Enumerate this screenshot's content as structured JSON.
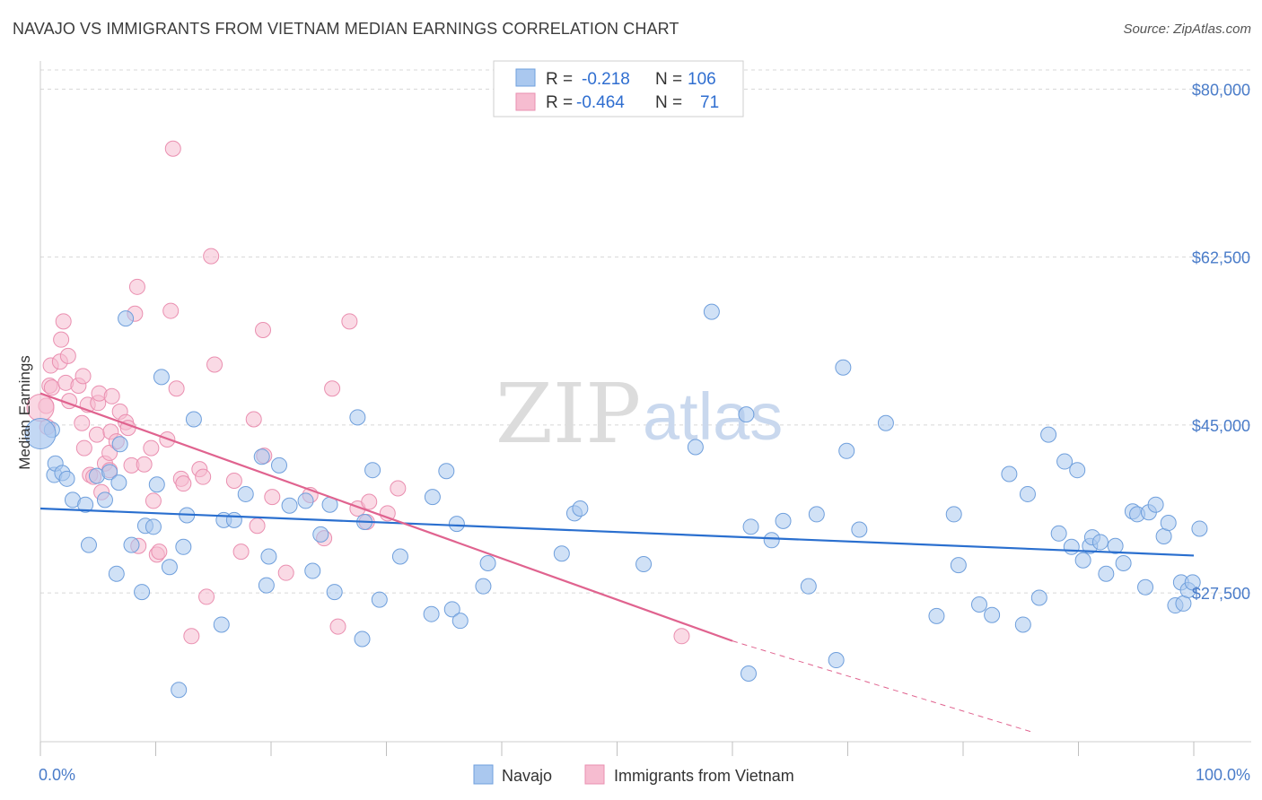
{
  "header": {
    "title": "NAVAJO VS IMMIGRANTS FROM VIETNAM MEDIAN EARNINGS CORRELATION CHART",
    "source": "Source: ZipAtlas.com"
  },
  "watermark": {
    "zip": "ZIP",
    "atlas": "atlas"
  },
  "legend": {
    "rows": [
      {
        "r_label": "R =",
        "r_value": "-0.218",
        "n_label": "N =",
        "n_value": "106"
      },
      {
        "r_label": "R =",
        "r_value": "-0.464",
        "n_label": "N =",
        "n_value": "71"
      }
    ]
  },
  "bottom_legend": {
    "series1": "Navajo",
    "series2": "Immigrants from Vietnam"
  },
  "colors": {
    "navajo_fill": "#aac8ef",
    "navajo_stroke": "#6f9fdc",
    "navajo_line": "#2a6fcf",
    "vietnam_fill": "#f6bcd0",
    "vietnam_stroke": "#ea8fb0",
    "vietnam_line": "#e0638f",
    "tick_label": "#4a7cc9",
    "grid": "#d8d8d8"
  },
  "chart_data": {
    "type": "scatter",
    "xlabel": "",
    "ylabel": "Median Earnings",
    "x_tick_labels": [
      "0.0%",
      "100.0%"
    ],
    "y_ticks": [
      27500,
      45000,
      62500,
      80000
    ],
    "y_tick_labels": [
      "$27,500",
      "$45,000",
      "$62,500",
      "$80,000"
    ],
    "xlim": [
      0,
      100
    ],
    "ylim": [
      12000,
      82000
    ],
    "grid": true,
    "legend_position": "top-center",
    "series": [
      {
        "name": "Navajo",
        "r": -0.218,
        "n": 106,
        "trend": {
          "x": [
            0,
            100
          ],
          "y": [
            36300,
            31400
          ]
        },
        "points": [
          [
            1.0,
            44500
          ],
          [
            1.2,
            39800
          ],
          [
            1.3,
            41000
          ],
          [
            1.9,
            40000
          ],
          [
            2.3,
            39400
          ],
          [
            2.8,
            37200
          ],
          [
            3.9,
            36700
          ],
          [
            4.2,
            32500
          ],
          [
            4.9,
            39700
          ],
          [
            5.6,
            37200
          ],
          [
            6.0,
            40100
          ],
          [
            6.6,
            29500
          ],
          [
            6.8,
            39000
          ],
          [
            6.9,
            43000
          ],
          [
            7.4,
            56100
          ],
          [
            7.9,
            32500
          ],
          [
            8.8,
            27600
          ],
          [
            9.1,
            34500
          ],
          [
            9.8,
            34400
          ],
          [
            10.1,
            38800
          ],
          [
            10.5,
            50000
          ],
          [
            11.2,
            30200
          ],
          [
            12.0,
            17400
          ],
          [
            12.4,
            32300
          ],
          [
            12.7,
            35600
          ],
          [
            13.3,
            45600
          ],
          [
            15.7,
            24200
          ],
          [
            15.9,
            35100
          ],
          [
            16.8,
            35100
          ],
          [
            17.8,
            37800
          ],
          [
            19.2,
            41700
          ],
          [
            19.6,
            28300
          ],
          [
            19.8,
            31300
          ],
          [
            20.7,
            40800
          ],
          [
            21.6,
            36600
          ],
          [
            23.0,
            37100
          ],
          [
            23.6,
            29800
          ],
          [
            24.3,
            33600
          ],
          [
            25.1,
            36700
          ],
          [
            25.5,
            27600
          ],
          [
            27.5,
            45800
          ],
          [
            27.9,
            22700
          ],
          [
            28.1,
            34900
          ],
          [
            28.8,
            40300
          ],
          [
            29.4,
            26800
          ],
          [
            31.2,
            31300
          ],
          [
            33.9,
            25300
          ],
          [
            34.0,
            37500
          ],
          [
            35.2,
            40200
          ],
          [
            35.7,
            25800
          ],
          [
            36.1,
            34700
          ],
          [
            36.4,
            24600
          ],
          [
            38.4,
            28200
          ],
          [
            38.8,
            30600
          ],
          [
            45.2,
            31600
          ],
          [
            46.3,
            35800
          ],
          [
            46.8,
            36300
          ],
          [
            52.3,
            30500
          ],
          [
            56.8,
            42700
          ],
          [
            58.2,
            56800
          ],
          [
            61.4,
            19100
          ],
          [
            61.6,
            34400
          ],
          [
            63.4,
            33000
          ],
          [
            64.4,
            35000
          ],
          [
            66.6,
            28200
          ],
          [
            67.3,
            35700
          ],
          [
            69.0,
            20500
          ],
          [
            69.6,
            51000
          ],
          [
            69.9,
            42300
          ],
          [
            71.0,
            34100
          ],
          [
            73.3,
            45200
          ],
          [
            77.7,
            25100
          ],
          [
            79.2,
            35700
          ],
          [
            79.6,
            30400
          ],
          [
            81.4,
            26300
          ],
          [
            82.5,
            25200
          ],
          [
            84.0,
            39900
          ],
          [
            85.2,
            24200
          ],
          [
            85.6,
            37800
          ],
          [
            86.6,
            27000
          ],
          [
            87.4,
            44000
          ],
          [
            88.3,
            33700
          ],
          [
            88.8,
            41200
          ],
          [
            89.4,
            32300
          ],
          [
            89.9,
            40300
          ],
          [
            90.4,
            30900
          ],
          [
            91.0,
            32400
          ],
          [
            91.2,
            33300
          ],
          [
            91.9,
            32800
          ],
          [
            92.4,
            29500
          ],
          [
            93.2,
            32400
          ],
          [
            93.9,
            30600
          ],
          [
            94.7,
            36000
          ],
          [
            95.1,
            35700
          ],
          [
            95.8,
            28100
          ],
          [
            96.1,
            35900
          ],
          [
            96.7,
            36700
          ],
          [
            97.4,
            33400
          ],
          [
            97.8,
            34800
          ],
          [
            98.4,
            26200
          ],
          [
            98.9,
            28600
          ],
          [
            99.1,
            26400
          ],
          [
            99.5,
            27800
          ],
          [
            99.9,
            28600
          ],
          [
            100.5,
            34200
          ],
          [
            61.2,
            46100
          ]
        ]
      },
      {
        "name": "Immigrants from Vietnam",
        "r": -0.464,
        "n": 71,
        "trend": {
          "x": [
            0,
            60
          ],
          "y": [
            48300,
            22500
          ]
        },
        "trend_extension": {
          "x": [
            60,
            86
          ],
          "y": [
            22500,
            13000
          ]
        },
        "points": [
          [
            0.5,
            47000
          ],
          [
            0.6,
            44800
          ],
          [
            0.8,
            49100
          ],
          [
            0.9,
            51200
          ],
          [
            1.0,
            48900
          ],
          [
            1.7,
            51600
          ],
          [
            1.8,
            53900
          ],
          [
            2.0,
            55800
          ],
          [
            2.2,
            49400
          ],
          [
            2.4,
            52200
          ],
          [
            2.5,
            47500
          ],
          [
            3.3,
            49100
          ],
          [
            3.6,
            45200
          ],
          [
            3.7,
            50100
          ],
          [
            3.8,
            42600
          ],
          [
            4.1,
            47100
          ],
          [
            4.3,
            39800
          ],
          [
            4.6,
            39600
          ],
          [
            4.9,
            44000
          ],
          [
            5.0,
            47300
          ],
          [
            5.1,
            48300
          ],
          [
            5.3,
            38000
          ],
          [
            5.6,
            41000
          ],
          [
            6.0,
            42100
          ],
          [
            6.0,
            40300
          ],
          [
            6.1,
            44300
          ],
          [
            6.2,
            48000
          ],
          [
            6.6,
            43300
          ],
          [
            6.9,
            46400
          ],
          [
            7.4,
            45300
          ],
          [
            7.6,
            44700
          ],
          [
            7.9,
            40800
          ],
          [
            8.2,
            56600
          ],
          [
            8.4,
            59400
          ],
          [
            8.5,
            32400
          ],
          [
            9.0,
            40900
          ],
          [
            9.6,
            42600
          ],
          [
            9.8,
            37100
          ],
          [
            10.1,
            31500
          ],
          [
            10.3,
            31800
          ],
          [
            11.0,
            43500
          ],
          [
            11.3,
            56900
          ],
          [
            11.5,
            73800
          ],
          [
            11.8,
            48800
          ],
          [
            12.2,
            39400
          ],
          [
            12.4,
            38900
          ],
          [
            13.1,
            23000
          ],
          [
            13.8,
            40400
          ],
          [
            14.1,
            39600
          ],
          [
            14.4,
            27100
          ],
          [
            14.8,
            62600
          ],
          [
            15.1,
            51300
          ],
          [
            16.8,
            39200
          ],
          [
            17.4,
            31800
          ],
          [
            18.5,
            45600
          ],
          [
            18.8,
            34500
          ],
          [
            19.3,
            54900
          ],
          [
            19.4,
            41800
          ],
          [
            20.1,
            37500
          ],
          [
            21.3,
            29600
          ],
          [
            23.4,
            37700
          ],
          [
            24.6,
            33200
          ],
          [
            25.3,
            48800
          ],
          [
            25.8,
            24000
          ],
          [
            26.8,
            55800
          ],
          [
            27.5,
            36300
          ],
          [
            28.3,
            34900
          ],
          [
            28.5,
            37000
          ],
          [
            30.1,
            35800
          ],
          [
            31.0,
            38400
          ],
          [
            55.6,
            23000
          ]
        ]
      }
    ]
  }
}
